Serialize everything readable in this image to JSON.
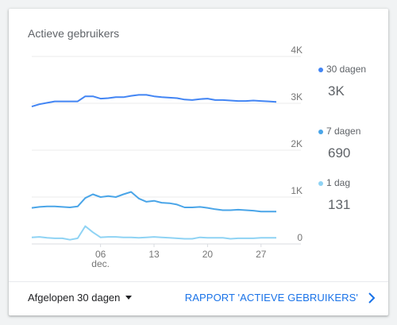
{
  "card": {
    "title": "Actieve gebruikers"
  },
  "footer": {
    "range_label": "Afgelopen 30 dagen",
    "report_link": "RAPPORT 'ACTIEVE GEBRUIKERS'"
  },
  "legend": [
    {
      "name": "30 dagen",
      "value": "3K",
      "color": "#4285f4"
    },
    {
      "name": "7 dagen",
      "value": "690",
      "color": "#4aa5e8"
    },
    {
      "name": "1 dag",
      "value": "131",
      "color": "#8fd3f4"
    }
  ],
  "chart_data": {
    "type": "line",
    "title": "Actieve gebruikers",
    "xlabel": "",
    "ylabel": "",
    "ylim": [
      0,
      4000
    ],
    "y_ticks": [
      "4K",
      "3K",
      "2K",
      "1K",
      "0"
    ],
    "y_tick_values": [
      4000,
      3000,
      2000,
      1000,
      0
    ],
    "x_ticks": [
      {
        "label": "06",
        "sublabel": "dec.",
        "index": 9
      },
      {
        "label": "13",
        "sublabel": "",
        "index": 16
      },
      {
        "label": "20",
        "sublabel": "",
        "index": 23
      },
      {
        "label": "27",
        "sublabel": "",
        "index": 30
      }
    ],
    "x": [
      1,
      2,
      3,
      4,
      5,
      6,
      7,
      8,
      9,
      10,
      11,
      12,
      13,
      14,
      15,
      16,
      17,
      18,
      19,
      20,
      21,
      22,
      23,
      24,
      25,
      26,
      27,
      28,
      29,
      30,
      31,
      32,
      33
    ],
    "grid": true,
    "series": [
      {
        "name": "30 dagen",
        "color": "#4285f4",
        "values": [
          2930,
          2980,
          3010,
          3040,
          3040,
          3040,
          3040,
          3150,
          3150,
          3100,
          3110,
          3130,
          3130,
          3160,
          3180,
          3180,
          3150,
          3130,
          3120,
          3110,
          3080,
          3070,
          3090,
          3100,
          3070,
          3070,
          3060,
          3050,
          3050,
          3060,
          3050,
          3040,
          3030
        ]
      },
      {
        "name": "7 dagen",
        "color": "#4aa5e8",
        "values": [
          770,
          790,
          800,
          800,
          790,
          780,
          800,
          980,
          1060,
          1000,
          1020,
          1000,
          1060,
          1110,
          970,
          900,
          920,
          880,
          870,
          840,
          780,
          780,
          790,
          770,
          740,
          720,
          720,
          730,
          720,
          710,
          690,
          690,
          690
        ]
      },
      {
        "name": "1 dag",
        "color": "#8fd3f4",
        "values": [
          140,
          150,
          130,
          120,
          120,
          90,
          120,
          380,
          250,
          140,
          150,
          150,
          140,
          140,
          130,
          140,
          150,
          140,
          130,
          120,
          110,
          110,
          140,
          130,
          130,
          130,
          110,
          120,
          120,
          120,
          130,
          131,
          131
        ]
      }
    ]
  }
}
